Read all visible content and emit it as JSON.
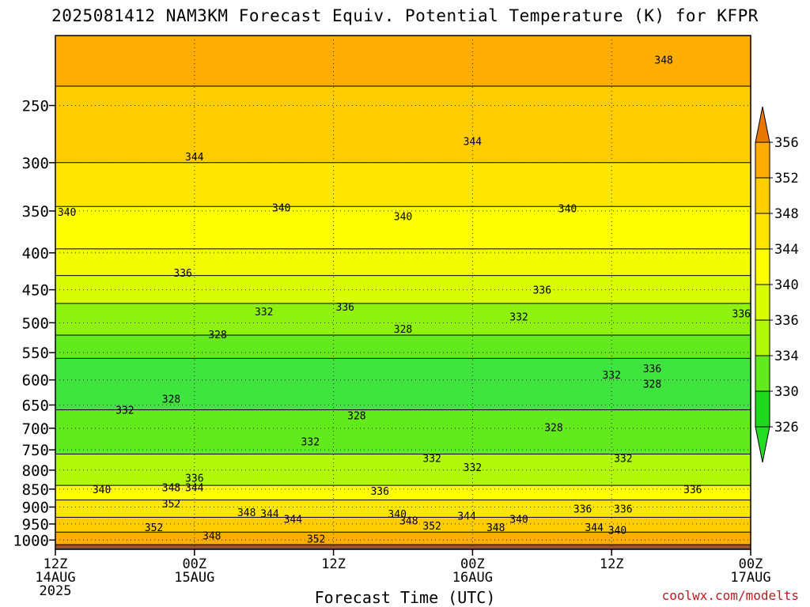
{
  "title": "2025081412 NAM3KM Forecast Equiv. Potential Temperature (K) for KFPR",
  "credit": "coolwx.com/modelts",
  "chart_data": {
    "type": "heatmap",
    "title": "2025081412 NAM3KM Forecast Equiv. Potential Temperature (K) for KFPR",
    "xlabel": "Forecast Time (UTC)",
    "ylabel": "",
    "x_ticks": [
      {
        "label": [
          "12Z",
          "14AUG",
          "2025"
        ],
        "hour": 0
      },
      {
        "label": [
          "00Z",
          "15AUG"
        ],
        "hour": 12
      },
      {
        "label": [
          "12Z"
        ],
        "hour": 24
      },
      {
        "label": [
          "00Z",
          "16AUG"
        ],
        "hour": 36
      },
      {
        "label": [
          "12Z"
        ],
        "hour": 48
      },
      {
        "label": [
          "00Z",
          "17AUG"
        ],
        "hour": 60
      }
    ],
    "x_range_hours": [
      0,
      60
    ],
    "y_axis": "pressure (hPa), inverted",
    "y_range": [
      1030,
      200
    ],
    "y_ticks": [
      250,
      300,
      350,
      400,
      450,
      500,
      550,
      600,
      650,
      700,
      750,
      800,
      850,
      900,
      950,
      1000
    ],
    "colorbar": {
      "levels": [
        326,
        330,
        334,
        336,
        340,
        344,
        348,
        352,
        356
      ],
      "label_values": [
        "356",
        "352",
        "348",
        "344",
        "340",
        "336",
        "334",
        "330",
        "326"
      ],
      "colors": [
        "#22dd22",
        "#33e633",
        "#77f011",
        "#b4f80a",
        "#e8fc00",
        "#fff000",
        "#ffd800",
        "#ffb300",
        "#f59400",
        "#e07d00"
      ]
    },
    "bands": [
      {
        "p_top": 200,
        "p_bot": 235,
        "value": 352
      },
      {
        "p_top": 235,
        "p_bot": 300,
        "value": 348
      },
      {
        "p_top": 300,
        "p_bot": 345,
        "value": 344
      },
      {
        "p_top": 345,
        "p_bot": 395,
        "value": 340
      },
      {
        "p_top": 395,
        "p_bot": 430,
        "value": 338
      },
      {
        "p_top": 430,
        "p_bot": 470,
        "value": 336
      },
      {
        "p_top": 470,
        "p_bot": 520,
        "value": 332
      },
      {
        "p_top": 520,
        "p_bot": 560,
        "value": 330
      },
      {
        "p_top": 560,
        "p_bot": 660,
        "value": 328
      },
      {
        "p_top": 660,
        "p_bot": 760,
        "value": 330
      },
      {
        "p_top": 760,
        "p_bot": 840,
        "value": 334
      },
      {
        "p_top": 840,
        "p_bot": 880,
        "value": 340
      },
      {
        "p_top": 880,
        "p_bot": 930,
        "value": 344
      },
      {
        "p_top": 930,
        "p_bot": 975,
        "value": 348
      },
      {
        "p_top": 975,
        "p_bot": 1015,
        "value": 352
      }
    ],
    "contour_labels": [
      {
        "hour": 52.5,
        "p": 216,
        "text": "348"
      },
      {
        "hour": 12.0,
        "p": 294,
        "text": "344"
      },
      {
        "hour": 36.0,
        "p": 280,
        "text": "344"
      },
      {
        "hour": 1.0,
        "p": 351,
        "text": "340"
      },
      {
        "hour": 19.5,
        "p": 346,
        "text": "340"
      },
      {
        "hour": 30.0,
        "p": 356,
        "text": "340"
      },
      {
        "hour": 44.2,
        "p": 347,
        "text": "340"
      },
      {
        "hour": 11.0,
        "p": 426,
        "text": "336"
      },
      {
        "hour": 25.0,
        "p": 475,
        "text": "336"
      },
      {
        "hour": 42.0,
        "p": 450,
        "text": "336"
      },
      {
        "hour": 59.2,
        "p": 485,
        "text": "336"
      },
      {
        "hour": 18.0,
        "p": 482,
        "text": "332"
      },
      {
        "hour": 40.0,
        "p": 490,
        "text": "332"
      },
      {
        "hour": 14.0,
        "p": 519,
        "text": "328"
      },
      {
        "hour": 30.0,
        "p": 510,
        "text": "328"
      },
      {
        "hour": 48.0,
        "p": 590,
        "text": "332"
      },
      {
        "hour": 51.5,
        "p": 578,
        "text": "336"
      },
      {
        "hour": 51.5,
        "p": 607,
        "text": "328"
      },
      {
        "hour": 10.0,
        "p": 637,
        "text": "328"
      },
      {
        "hour": 6.0,
        "p": 660,
        "text": "332"
      },
      {
        "hour": 26.0,
        "p": 672,
        "text": "328"
      },
      {
        "hour": 43.0,
        "p": 698,
        "text": "328"
      },
      {
        "hour": 22.0,
        "p": 730,
        "text": "332"
      },
      {
        "hour": 32.5,
        "p": 770,
        "text": "332"
      },
      {
        "hour": 36.0,
        "p": 792,
        "text": "332"
      },
      {
        "hour": 49.0,
        "p": 770,
        "text": "332"
      },
      {
        "hour": 12.0,
        "p": 820,
        "text": "336"
      },
      {
        "hour": 4.0,
        "p": 850,
        "text": "340"
      },
      {
        "hour": 10.0,
        "p": 845,
        "text": "348"
      },
      {
        "hour": 12.0,
        "p": 845,
        "text": "344"
      },
      {
        "hour": 10.0,
        "p": 890,
        "text": "352"
      },
      {
        "hour": 28.0,
        "p": 855,
        "text": "336"
      },
      {
        "hour": 16.5,
        "p": 915,
        "text": "348"
      },
      {
        "hour": 18.5,
        "p": 918,
        "text": "344"
      },
      {
        "hour": 20.5,
        "p": 935,
        "text": "344"
      },
      {
        "hour": 29.5,
        "p": 920,
        "text": "340"
      },
      {
        "hour": 30.5,
        "p": 940,
        "text": "348"
      },
      {
        "hour": 32.5,
        "p": 955,
        "text": "352"
      },
      {
        "hour": 35.5,
        "p": 925,
        "text": "344"
      },
      {
        "hour": 38.0,
        "p": 960,
        "text": "348"
      },
      {
        "hour": 40.0,
        "p": 935,
        "text": "340"
      },
      {
        "hour": 45.5,
        "p": 905,
        "text": "336"
      },
      {
        "hour": 49.0,
        "p": 905,
        "text": "336"
      },
      {
        "hour": 55.0,
        "p": 850,
        "text": "336"
      },
      {
        "hour": 46.5,
        "p": 960,
        "text": "344"
      },
      {
        "hour": 48.5,
        "p": 968,
        "text": "340"
      },
      {
        "hour": 8.5,
        "p": 960,
        "text": "352"
      },
      {
        "hour": 13.5,
        "p": 985,
        "text": "348"
      },
      {
        "hour": 22.5,
        "p": 995,
        "text": "352"
      }
    ],
    "grid": true
  }
}
